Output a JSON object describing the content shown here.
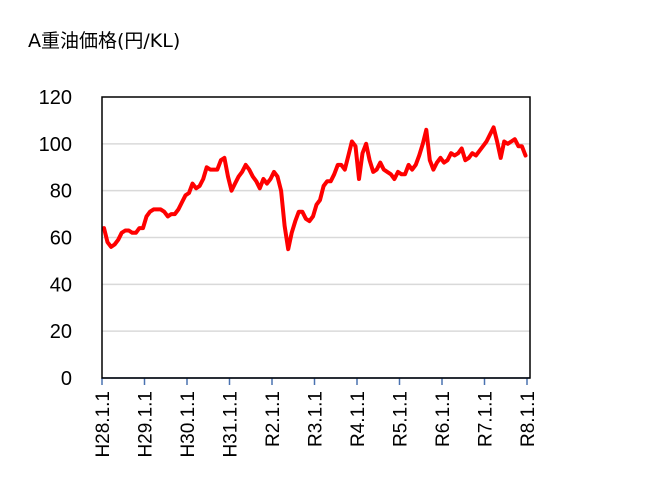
{
  "chart_data": {
    "type": "line",
    "title": "A重油価格(円/KL)",
    "xlabel": "",
    "ylabel": "",
    "ylim": [
      0,
      120
    ],
    "yticks": [
      0,
      20,
      40,
      60,
      80,
      100,
      120
    ],
    "grid": true,
    "legend": null,
    "line_color": "#ff0000",
    "x_tick_labels": [
      "H28.1.1",
      "H29.1.1",
      "H30.1.1",
      "H31.1.1",
      "R2.1.1",
      "R3.1.1",
      "R4.1.1",
      "R5.1.1",
      "R6.1.1",
      "R7.1.1",
      "R8.1.1"
    ],
    "x_start": "H28.1 (2016-01)",
    "x_interval": "monthly",
    "series": [
      {
        "name": "A重油価格",
        "values": [
          64,
          58,
          56,
          57,
          59,
          62,
          63,
          63,
          62,
          62,
          64,
          64,
          69,
          71,
          72,
          72,
          72,
          71,
          69,
          70,
          70,
          72,
          75,
          78,
          79,
          83,
          81,
          82,
          85,
          90,
          89,
          89,
          89,
          93,
          94,
          86,
          80,
          83,
          86,
          88,
          91,
          89,
          86,
          84,
          81,
          85,
          83,
          85,
          88,
          86,
          80,
          65,
          55,
          62,
          67,
          71,
          71,
          68,
          67,
          69,
          74,
          76,
          82,
          84,
          84,
          87,
          91,
          91,
          89,
          95,
          101,
          99,
          85,
          96,
          100,
          93,
          88,
          89,
          92,
          89,
          88,
          87,
          85,
          88,
          87,
          87,
          91,
          89,
          91,
          95,
          100,
          106,
          93,
          89,
          92,
          94,
          92,
          93,
          96,
          95,
          96,
          98,
          93,
          94,
          96,
          95,
          97,
          99,
          101,
          104,
          107,
          101,
          94,
          101,
          100,
          101,
          102,
          99,
          99,
          95
        ]
      }
    ]
  }
}
